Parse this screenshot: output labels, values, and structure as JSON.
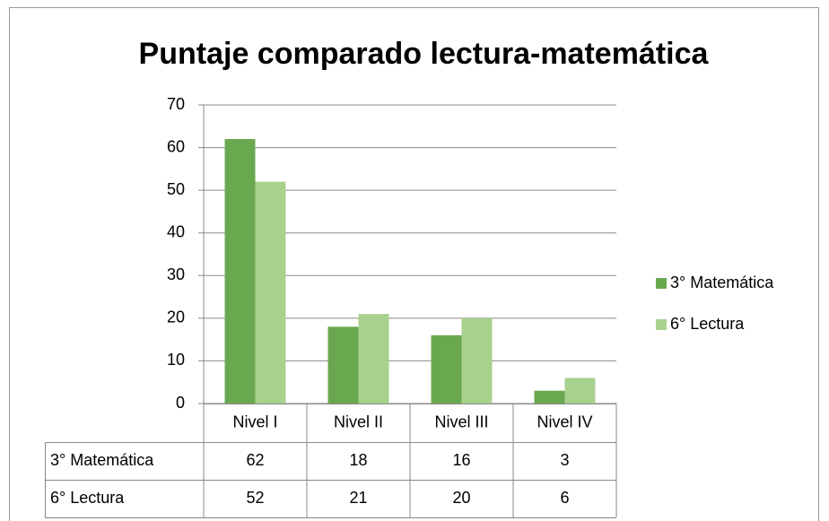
{
  "chart_data": {
    "type": "bar",
    "title": "Puntaje comparado lectura-matemática",
    "categories": [
      "Nivel I",
      "Nivel II",
      "Nivel III",
      "Nivel IV"
    ],
    "series": [
      {
        "name": "3° Matemática",
        "color": "#6aa84f",
        "values": [
          62,
          18,
          16,
          3
        ]
      },
      {
        "name": "6° Lectura",
        "color": "#a9d18e",
        "values": [
          52,
          21,
          20,
          6
        ]
      }
    ],
    "ylim": [
      0,
      70
    ],
    "yticks": [
      0,
      10,
      20,
      30,
      40,
      50,
      60,
      70
    ],
    "grid": true,
    "legend": "right",
    "data_table": true
  }
}
